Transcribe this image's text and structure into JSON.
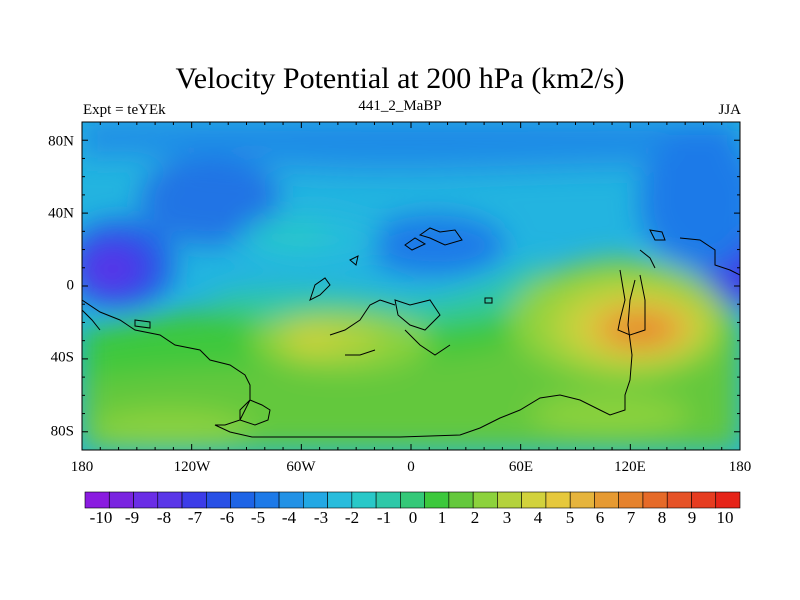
{
  "title": "Velocity Potential at 200 hPa (km2/s)",
  "left_string": "Expt = teYEk",
  "center_string": "441_2_MaBP",
  "right_string": "JJA",
  "map": {
    "lat_labels": [
      "80N",
      "40N",
      "0",
      "40S",
      "80S"
    ],
    "lat_values": [
      80,
      40,
      0,
      -40,
      -80
    ],
    "lon_labels": [
      "180",
      "120W",
      "60W",
      "0",
      "60E",
      "120E",
      "180"
    ],
    "lon_values": [
      -180,
      -120,
      -60,
      0,
      60,
      120,
      180
    ]
  },
  "colorbar": {
    "labels": [
      "-10",
      "-9",
      "-8",
      "-7",
      "-6",
      "-5",
      "-4",
      "-3",
      "-2",
      "-1",
      "0",
      "1",
      "2",
      "3",
      "4",
      "5",
      "6",
      "7",
      "8",
      "9",
      "10"
    ],
    "colors": [
      "#8a1be0",
      "#7a24e0",
      "#6a2de6",
      "#5a36e8",
      "#3c3ce8",
      "#2850e6",
      "#1e64e6",
      "#1e7ae8",
      "#2392e6",
      "#23a8e4",
      "#28bcdc",
      "#28c8c8",
      "#2ec8a8",
      "#34c878",
      "#3cc83c",
      "#64c83c",
      "#8cd23c",
      "#b4d23c",
      "#d2d23c",
      "#e6c83c",
      "#e6b43c",
      "#e69a32",
      "#e6822c",
      "#e66a28",
      "#e65226",
      "#e63c20",
      "#e62418"
    ]
  },
  "contour_fields": [
    {
      "lon": -165,
      "lat": 10,
      "value": -7.5
    },
    {
      "lon": -135,
      "lat": 35,
      "value": -4.5
    },
    {
      "lon": -80,
      "lat": 0,
      "value": -2
    },
    {
      "lon": 10,
      "lat": 15,
      "value": -3
    },
    {
      "lon": 25,
      "lat": 25,
      "value": -3.5
    },
    {
      "lon": 175,
      "lat": 8,
      "value": -7
    },
    {
      "lon": 160,
      "lat": 45,
      "value": -3
    },
    {
      "lon": -50,
      "lat": -28,
      "value": 3.5
    },
    {
      "lon": 115,
      "lat": -25,
      "value": 7.5
    },
    {
      "lon": 90,
      "lat": -5,
      "value": 4
    },
    {
      "lon": -120,
      "lat": -55,
      "value": 2.5
    }
  ]
}
